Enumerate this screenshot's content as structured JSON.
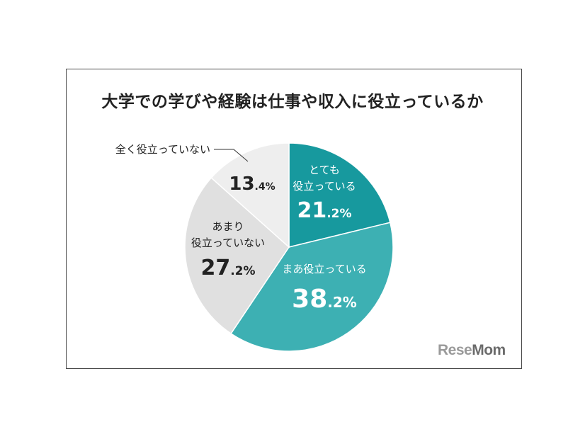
{
  "title": "大学での学びや経験は仕事や収入に役立っているか",
  "logo": {
    "part1": "Rese",
    "part2": "Mom"
  },
  "chart_data": {
    "type": "pie",
    "title": "大学での学びや経験は仕事や収入に役立っているか",
    "start_angle_deg": 0,
    "direction": "clockwise",
    "slices": [
      {
        "label": "とても\n役立っている",
        "value": 21.2,
        "color": "#17999e",
        "text_color": "#ffffff"
      },
      {
        "label": "まあ役立っている",
        "value": 38.2,
        "color": "#3db0b3",
        "text_color": "#ffffff"
      },
      {
        "label": "あまり\n役立っていない",
        "value": 27.2,
        "color": "#e0e0e0",
        "text_color": "#222222"
      },
      {
        "label": "全く役立っていない",
        "value": 13.4,
        "color": "#eeeeee",
        "text_color": "#222222"
      }
    ],
    "value_format": {
      "suffix": "%"
    }
  }
}
